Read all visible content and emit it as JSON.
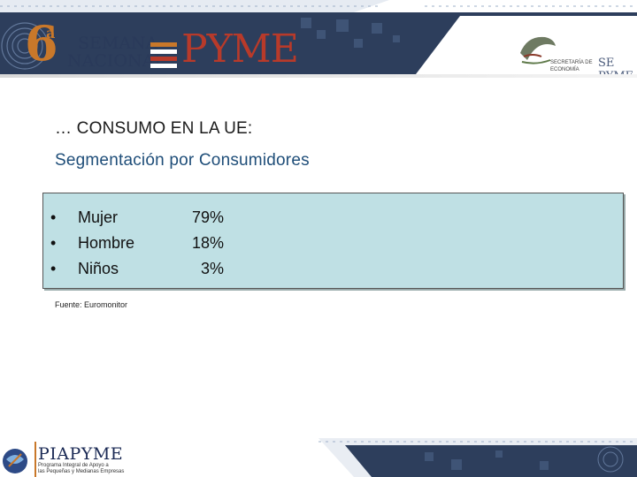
{
  "header": {
    "number": "6",
    "ordinal": "a",
    "semana": "SEMANA",
    "nacional": "NACIONAL",
    "pyme": "PYME",
    "gov_line1": "SECRETARÍA DE",
    "gov_line2": "ECONOMÍA",
    "apoyo": "SE PYME"
  },
  "slide": {
    "title_line1": "… CONSUMO EN LA UE:",
    "title_line2": "Segmentación por Consumidores",
    "items": [
      {
        "bullet": "•",
        "label": "Mujer",
        "value": "79%"
      },
      {
        "bullet": "•",
        "label": "Hombre",
        "value": "18%"
      },
      {
        "bullet": "•",
        "label": "Niños",
        "value": "3%"
      }
    ],
    "source": "Fuente: Euromonitor"
  },
  "footer": {
    "brand": "PIAPYME",
    "sub_line1": "Programa Integral de Apoyo a",
    "sub_line2": "las Pequeñas y Medianas Empresas"
  },
  "colors": {
    "title_dark": "#1a1a1a",
    "title_blue": "#1f4e79",
    "panel_bg": "#bfe0e4",
    "accent_orange": "#c9782a",
    "accent_red": "#b83a2a",
    "navy": "#1b2a55"
  }
}
